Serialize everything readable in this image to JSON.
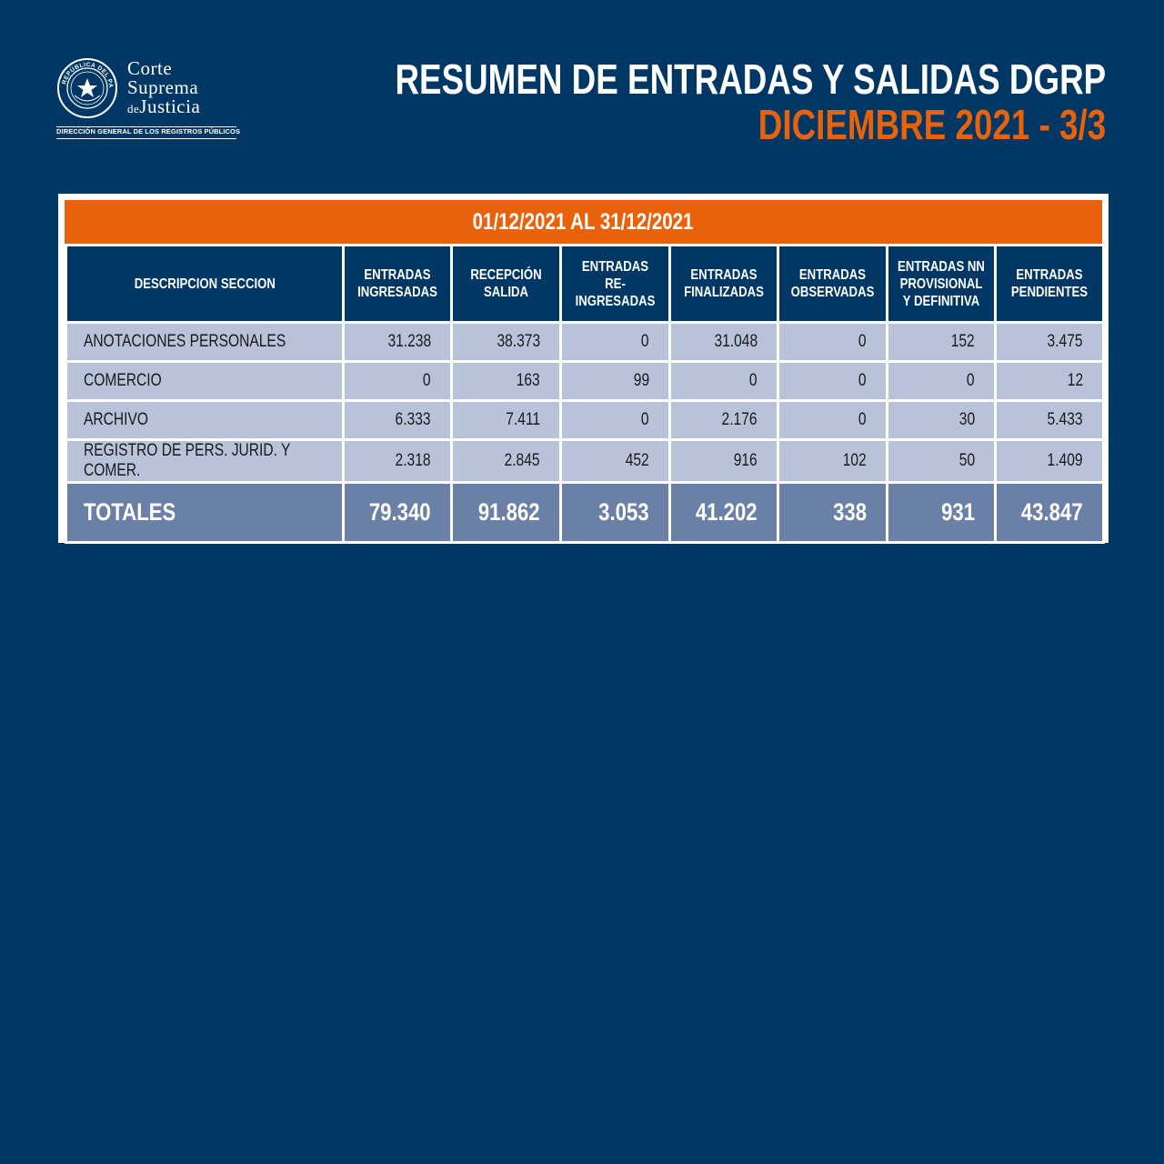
{
  "logo": {
    "line1": "Corte",
    "line2": "Suprema",
    "line3_small": "de",
    "line3": "Justicia",
    "subtitle": "DIRECCIÓN GENERAL DE LOS REGISTROS PÚBLICOS",
    "seal_text": "REPÚBLICA DEL PARAGUAY"
  },
  "header": {
    "title": "RESUMEN DE ENTRADAS Y SALIDAS DGRP",
    "subtitle": "DICIEMBRE 2021 - 3/3"
  },
  "table": {
    "period": "01/12/2021 AL 31/12/2021",
    "columns": [
      "DESCRIPCION SECCION",
      "ENTRADAS INGRESADAS",
      "RECEPCIÓN SALIDA",
      "ENTRADAS RE-INGRESADAS",
      "ENTRADAS FINALIZADAS",
      "ENTRADAS OBSERVADAS",
      "ENTRADAS NN PROVISIONAL Y DEFINITIVA",
      "ENTRADAS PENDIENTES"
    ],
    "rows": [
      [
        "ANOTACIONES PERSONALES",
        "31.238",
        "38.373",
        "0",
        "31.048",
        "0",
        "152",
        "3.475"
      ],
      [
        "COMERCIO",
        "0",
        "163",
        "99",
        "0",
        "0",
        "0",
        "12"
      ],
      [
        "ARCHIVO",
        "6.333",
        "7.411",
        "0",
        "2.176",
        "0",
        "30",
        "5.433"
      ],
      [
        "REGISTRO DE PERS. JURID. Y COMER.",
        "2.318",
        "2.845",
        "452",
        "916",
        "102",
        "50",
        "1.409"
      ]
    ],
    "totals": [
      "TOTALES",
      "79.340",
      "91.862",
      "3.053",
      "41.202",
      "338",
      "931",
      "43.847"
    ]
  },
  "colors": {
    "background": "#003764",
    "accent": "#e8620c",
    "row": "#b8c2d9",
    "totals": "#6b80a6"
  }
}
